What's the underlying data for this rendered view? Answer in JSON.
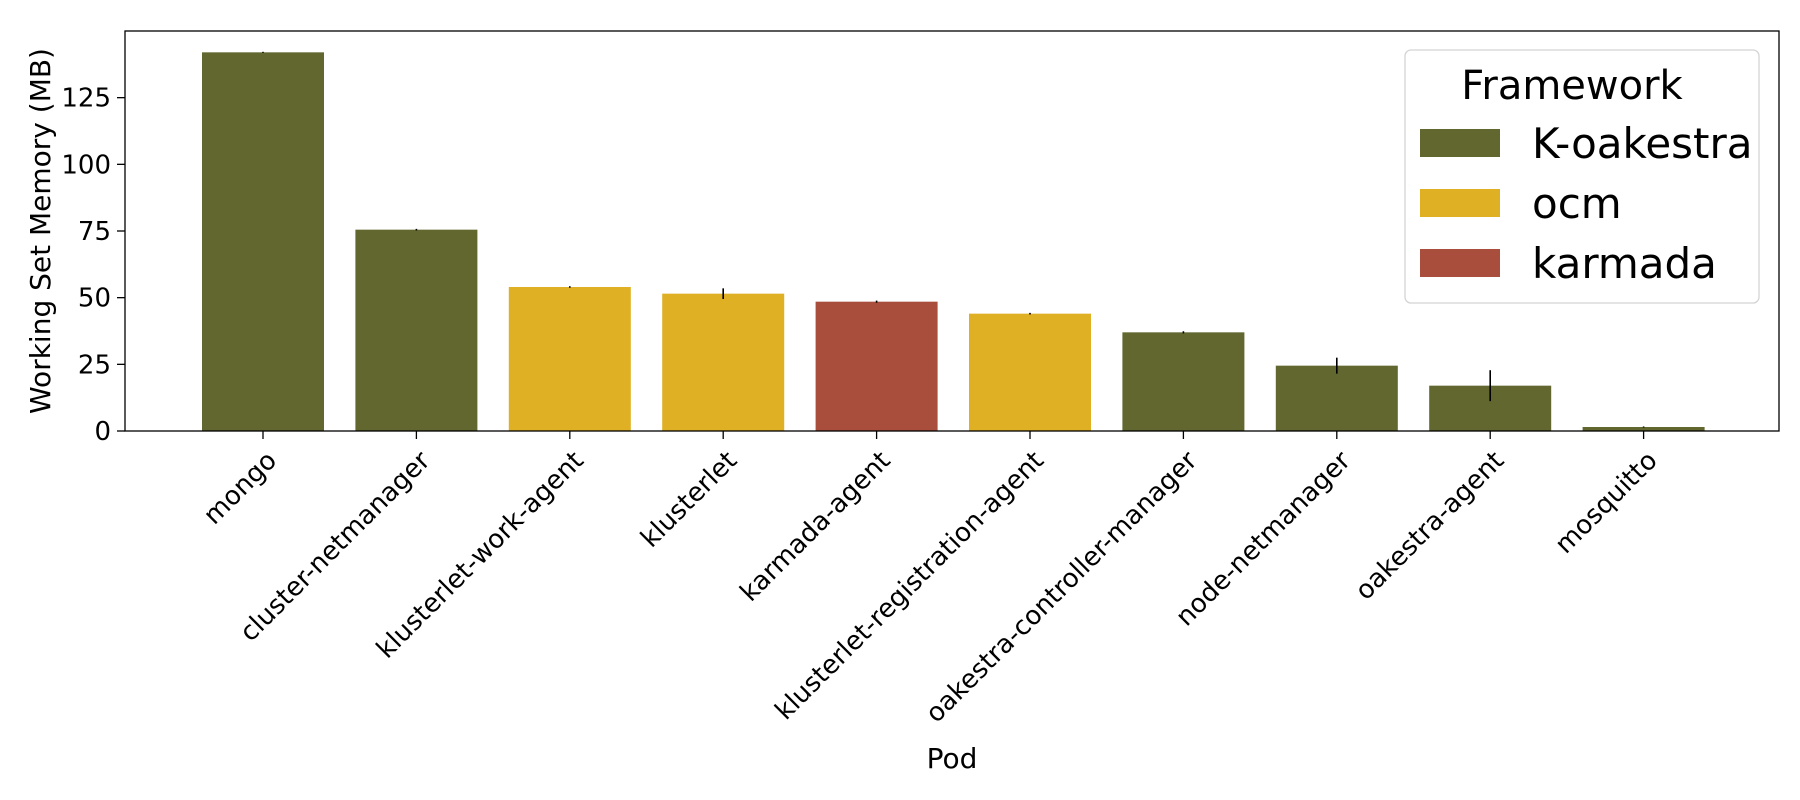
{
  "chart_data": {
    "type": "bar",
    "xlabel": "Pod",
    "ylabel": "Working Set Memory (MB)",
    "ylim": [
      0,
      150
    ],
    "yticks": [
      0,
      25,
      50,
      75,
      100,
      125
    ],
    "grid": false,
    "categories": [
      "mongo",
      "cluster-netmanager",
      "klusterlet-work-agent",
      "klusterlet",
      "karmada-agent",
      "klusterlet-registration-agent",
      "oakestra-controller-manager",
      "node-netmanager",
      "oakestra-agent",
      "mosquitto"
    ],
    "values": [
      142,
      75.5,
      54,
      51.5,
      48.5,
      44,
      37,
      24.5,
      17,
      1.5
    ],
    "errors": [
      0.2,
      0.3,
      0.3,
      2,
      0.4,
      0.3,
      0.4,
      3,
      5.8,
      0.2
    ],
    "frameworks": [
      "K-oakestra",
      "K-oakestra",
      "ocm",
      "ocm",
      "karmada",
      "ocm",
      "K-oakestra",
      "K-oakestra",
      "K-oakestra",
      "K-oakestra"
    ],
    "legend": {
      "title": "Framework",
      "position": "top-right",
      "entries": [
        {
          "name": "K-oakestra",
          "color": "#61672e"
        },
        {
          "name": "ocm",
          "color": "#dfb023"
        },
        {
          "name": "karmada",
          "color": "#a94e3d"
        }
      ]
    }
  }
}
